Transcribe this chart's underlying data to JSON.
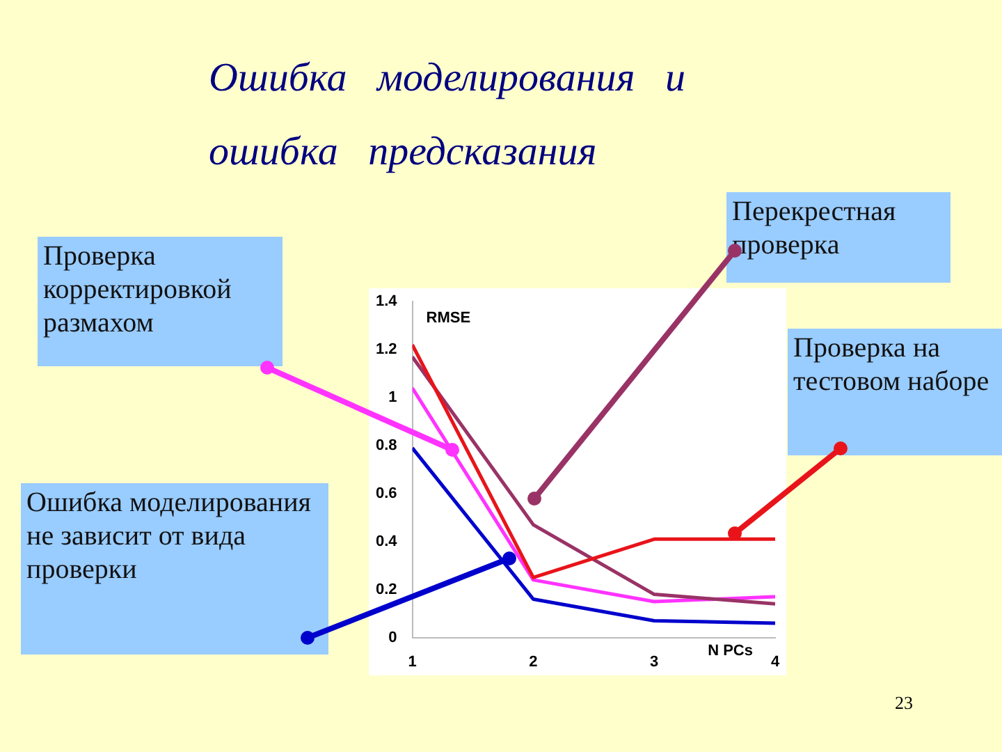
{
  "chart_data": {
    "type": "line",
    "title": "Ошибка   моделирования   и\nошибка   предсказания",
    "xlabel": "N PCs",
    "ylabel": "RMSE",
    "x": [
      1,
      2,
      3,
      4
    ],
    "xlim": [
      1,
      4
    ],
    "xticks": [
      1,
      2,
      3,
      4
    ],
    "ylim": [
      0,
      1.4
    ],
    "yticks": [
      0,
      0.2,
      0.4,
      0.6,
      0.8,
      1,
      1.2,
      1.4
    ],
    "grid": false,
    "legend": false,
    "marker": "none",
    "series": [
      {
        "color": "#e8141a",
        "values": [
          1.22,
          0.25,
          0.41,
          0.41
        ]
      },
      {
        "color": "#993366",
        "values": [
          1.17,
          0.47,
          0.18,
          0.14
        ]
      },
      {
        "color": "#ff33ff",
        "values": [
          1.04,
          0.24,
          0.15,
          0.17
        ]
      },
      {
        "color": "#0000cc",
        "values": [
          0.79,
          0.16,
          0.07,
          0.06
        ]
      }
    ],
    "annotations": [
      "Проверка корректировкой размахом",
      "Перекрестная проверка",
      "Проверка на тестовом наборе",
      "Ошибка моделирования не зависит от вида проверки",
      "23"
    ]
  }
}
